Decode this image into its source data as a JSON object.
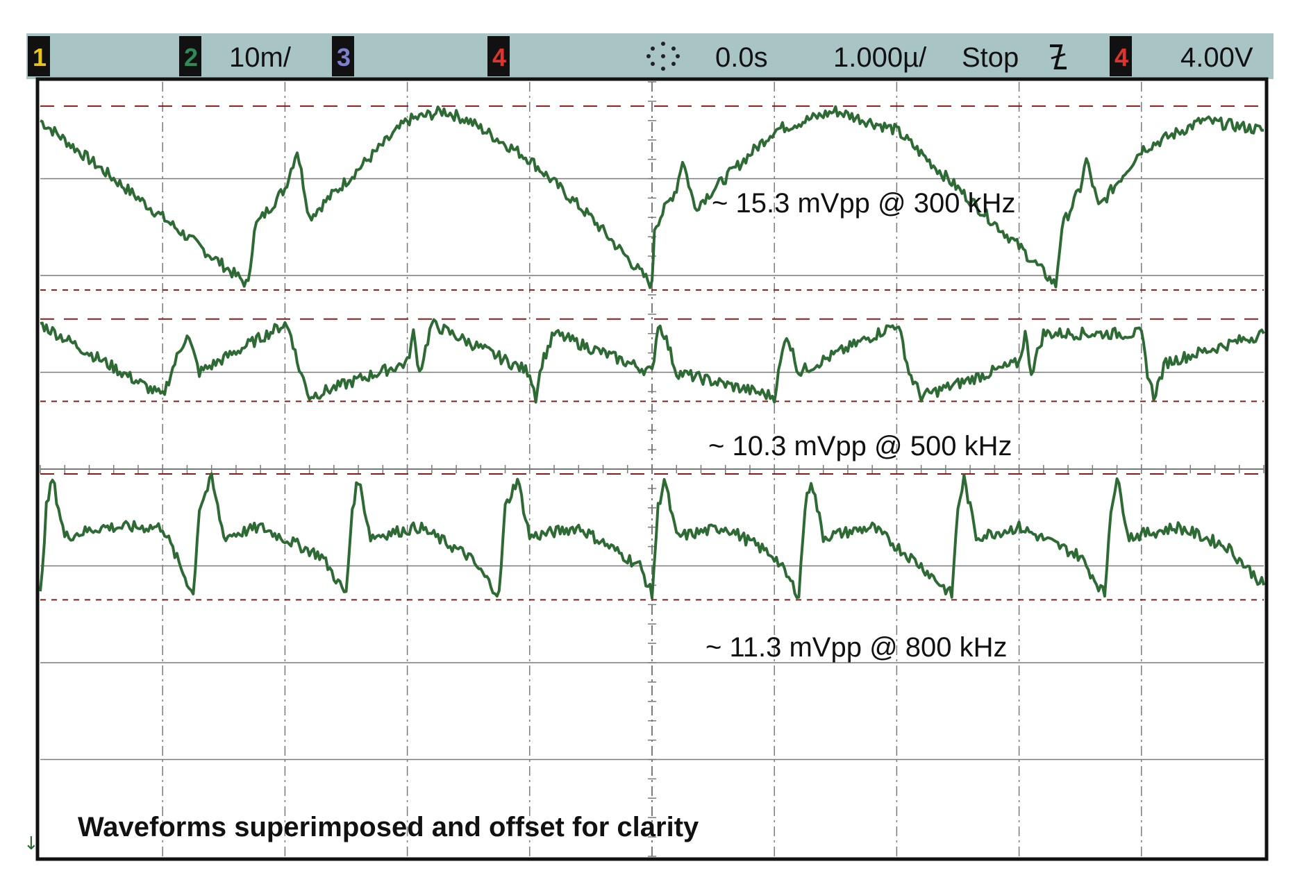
{
  "statusbar": {
    "channels": [
      {
        "label": "1",
        "color": "#e6c619",
        "value": ""
      },
      {
        "label": "2",
        "color": "#2e8b57",
        "value": "10m/"
      },
      {
        "label": "3",
        "color": "#7f7fd0",
        "value": ""
      },
      {
        "label": "4",
        "color": "#e0332c",
        "value": ""
      }
    ],
    "run_icon": "trigger-burst-icon",
    "time_offset": "0.0s",
    "timebase": "1.000µ/",
    "run_state": "Stop",
    "trigger_edge_icon": "falling-edge-icon",
    "trigger_channel": "4",
    "trigger_level": "4.00V"
  },
  "colors": {
    "statusbar_bg": "#a8c4c4",
    "trace": "#2d6a34",
    "cursor": "#8b1a1a",
    "grid": "#7a7a7a",
    "frame": "#111111"
  },
  "chart_data": {
    "type": "line",
    "grid": true,
    "x_divisions": 10,
    "y_divisions": 8,
    "xlabel": "",
    "ylabel": "",
    "series": [
      {
        "annotation": "~ 15.3 mVpp @ 300 kHz",
        "x_div": [
          0.0,
          1.0,
          1.7,
          1.75,
          2.0,
          2.1,
          2.2,
          3.0,
          3.3,
          3.5,
          4.0,
          4.5,
          5.0,
          5.02,
          5.2,
          5.25,
          5.35,
          6.0,
          6.5,
          7.0,
          7.5,
          8.0,
          8.3,
          8.35,
          8.5,
          8.55,
          8.65,
          9.0,
          9.5,
          10.0
        ],
        "y_div": [
          7.6,
          6.6,
          5.9,
          6.5,
          6.9,
          7.3,
          6.6,
          7.6,
          7.7,
          7.6,
          7.2,
          6.6,
          5.9,
          6.5,
          6.9,
          7.2,
          6.7,
          7.5,
          7.7,
          7.5,
          6.9,
          6.3,
          5.9,
          6.5,
          6.9,
          7.2,
          6.7,
          7.3,
          7.6,
          7.5
        ]
      },
      {
        "annotation": "~ 10.3 mVpp @ 500 kHz",
        "x_div": [
          0.0,
          1.0,
          1.1,
          1.2,
          1.3,
          2.0,
          2.05,
          2.1,
          2.2,
          3.0,
          3.05,
          3.1,
          3.2,
          4.0,
          4.05,
          4.1,
          4.2,
          5.0,
          5.05,
          5.1,
          5.2,
          6.0,
          6.05,
          6.1,
          6.2,
          7.0,
          7.05,
          7.1,
          7.2,
          8.0,
          8.05,
          8.1,
          8.2,
          9.0,
          9.05,
          9.1,
          9.2,
          10.0
        ],
        "y_div": [
          5.5,
          4.75,
          5.1,
          5.4,
          5.0,
          5.5,
          5.4,
          5.1,
          4.75,
          5.1,
          5.4,
          5.0,
          5.5,
          5.0,
          4.75,
          5.1,
          5.4,
          5.0,
          5.5,
          5.4,
          5.0,
          4.75,
          5.1,
          5.4,
          5.0,
          5.5,
          5.3,
          5.0,
          4.75,
          5.1,
          5.4,
          5.0,
          5.4,
          5.4,
          5.0,
          4.75,
          5.1,
          5.4
        ]
      },
      {
        "annotation": "~ 11.3 mVpp @ 800 kHz",
        "x_div": [
          0.0,
          0.05,
          0.1,
          0.2,
          0.5,
          1.0,
          1.25,
          1.3,
          1.4,
          1.5,
          1.8,
          2.3,
          2.5,
          2.55,
          2.6,
          2.7,
          3.1,
          3.5,
          3.75,
          3.8,
          3.9,
          4.0,
          4.4,
          4.9,
          5.0,
          5.05,
          5.1,
          5.2,
          5.6,
          6.0,
          6.2,
          6.25,
          6.3,
          6.4,
          6.8,
          7.2,
          7.45,
          7.5,
          7.55,
          7.65,
          8.0,
          8.5,
          8.7,
          8.75,
          8.8,
          8.9,
          9.3,
          9.7,
          10.0
        ],
        "y_div": [
          2.7,
          3.6,
          3.9,
          3.3,
          3.4,
          3.4,
          2.7,
          3.6,
          3.9,
          3.3,
          3.4,
          3.1,
          2.7,
          3.6,
          3.9,
          3.3,
          3.4,
          3.1,
          2.7,
          3.6,
          3.9,
          3.3,
          3.4,
          3.0,
          2.7,
          3.6,
          3.9,
          3.3,
          3.4,
          3.1,
          2.7,
          3.6,
          3.9,
          3.3,
          3.4,
          3.0,
          2.7,
          3.6,
          3.9,
          3.3,
          3.4,
          3.1,
          2.7,
          3.6,
          3.9,
          3.3,
          3.4,
          3.2,
          2.8
        ]
      }
    ],
    "caption": "Waveforms superimposed and offset for clarity"
  }
}
